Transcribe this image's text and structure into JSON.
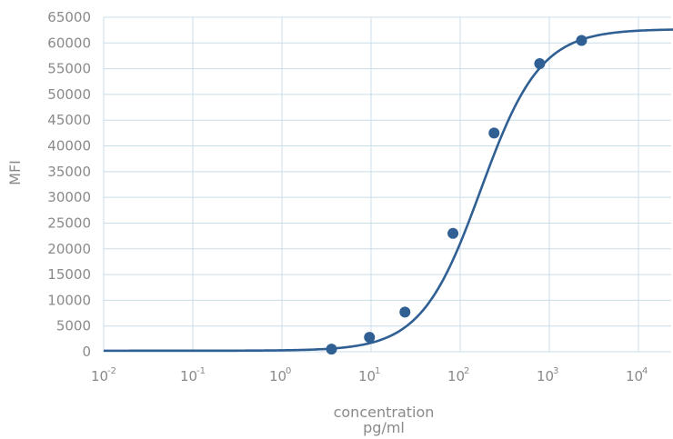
{
  "chart_data": {
    "type": "scatter",
    "title": "",
    "xlabel": "concentration",
    "xunit": "pg/ml",
    "ylabel": "MFI",
    "x_scale": "log10",
    "xlim": [
      0.01,
      25000
    ],
    "ylim": [
      0,
      65000
    ],
    "grid": true,
    "x_ticks": [
      {
        "base": "10",
        "exp": "-2",
        "value": 0.01
      },
      {
        "base": "10",
        "exp": "-1",
        "value": 0.1
      },
      {
        "base": "10",
        "exp": "0",
        "value": 1
      },
      {
        "base": "10",
        "exp": "1",
        "value": 10
      },
      {
        "base": "10",
        "exp": "2",
        "value": 100
      },
      {
        "base": "10",
        "exp": "3",
        "value": 1000
      },
      {
        "base": "10",
        "exp": "4",
        "value": 10000
      }
    ],
    "y_ticks": [
      "0",
      "5000",
      "10000",
      "15000",
      "20000",
      "25000",
      "30000",
      "35000",
      "40000",
      "45000",
      "50000",
      "55000",
      "60000",
      "65000"
    ],
    "series": [
      {
        "style": "markers",
        "x": [
          3.6,
          9.6,
          24,
          83,
          240,
          780,
          2300
        ],
        "y": [
          500,
          2800,
          7700,
          23000,
          42500,
          56000,
          60500
        ]
      },
      {
        "style": "fitted-curve",
        "bottom": 200,
        "top": 62700,
        "ec50": 170,
        "hill": 1.3
      }
    ],
    "colors": {
      "series": "#2f5f93",
      "grid": "#c9dde9",
      "text": "#8a8a8a"
    }
  }
}
